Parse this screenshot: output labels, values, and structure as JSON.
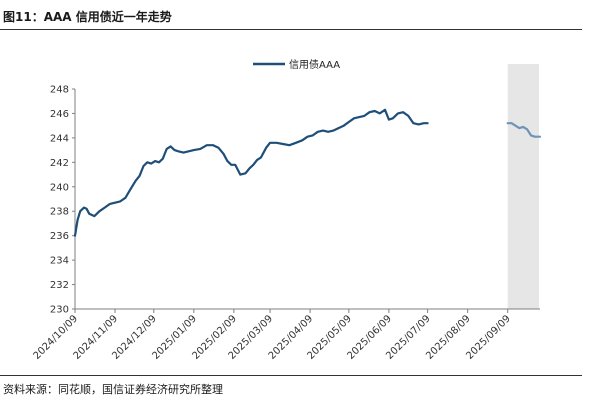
{
  "figure": {
    "title": "图11：AAA 信用债近一年走势",
    "source": "资料来源：同花顺，国信证券经济研究所整理"
  },
  "colors": {
    "line": "#1f4e79",
    "forecast_line": "#6f93b5",
    "shade": "#e6e6e6",
    "axis": "#7f7f7f"
  },
  "chart_data": {
    "type": "line",
    "title": "",
    "xlabel": "",
    "ylabel": "",
    "ylim": [
      230,
      248
    ],
    "yticks": [
      230,
      232,
      234,
      236,
      238,
      240,
      242,
      244,
      246,
      248
    ],
    "xlim": [
      "2024-10-09",
      "2025-10-04"
    ],
    "xticks": [
      "2024/10/09",
      "2024/11/09",
      "2024/12/09",
      "2025/01/09",
      "2025/02/09",
      "2025/03/09",
      "2025/04/09",
      "2025/05/09",
      "2025/06/09",
      "2025/07/09",
      "2025/08/09",
      "2025/09/09"
    ],
    "grid": false,
    "legend": {
      "position": "top-center"
    },
    "shaded_region": {
      "from": "2025-09-09",
      "to": "2025-10-04"
    },
    "series": [
      {
        "name": "信用债AAA",
        "points": [
          [
            "2024-10-09",
            236.0
          ],
          [
            "2024-10-11",
            237.3
          ],
          [
            "2024-10-13",
            238.0
          ],
          [
            "2024-10-16",
            238.3
          ],
          [
            "2024-10-18",
            238.2
          ],
          [
            "2024-10-20",
            237.8
          ],
          [
            "2024-10-24",
            237.6
          ],
          [
            "2024-10-28",
            238.0
          ],
          [
            "2024-11-01",
            238.3
          ],
          [
            "2024-11-05",
            238.6
          ],
          [
            "2024-11-09",
            238.7
          ],
          [
            "2024-11-13",
            238.8
          ],
          [
            "2024-11-17",
            239.1
          ],
          [
            "2024-11-21",
            239.8
          ],
          [
            "2024-11-25",
            240.5
          ],
          [
            "2024-11-28",
            240.9
          ],
          [
            "2024-12-01",
            241.7
          ],
          [
            "2024-12-04",
            242.0
          ],
          [
            "2024-12-07",
            241.9
          ],
          [
            "2024-12-10",
            242.1
          ],
          [
            "2024-12-13",
            242.0
          ],
          [
            "2024-12-16",
            242.3
          ],
          [
            "2024-12-19",
            243.1
          ],
          [
            "2024-12-22",
            243.3
          ],
          [
            "2024-12-25",
            243.0
          ],
          [
            "2024-12-28",
            242.9
          ],
          [
            "2025-01-01",
            242.8
          ],
          [
            "2025-01-05",
            242.9
          ],
          [
            "2025-01-09",
            243.0
          ],
          [
            "2025-01-14",
            243.1
          ],
          [
            "2025-01-19",
            243.4
          ],
          [
            "2025-01-24",
            243.4
          ],
          [
            "2025-01-28",
            243.2
          ],
          [
            "2025-02-01",
            242.7
          ],
          [
            "2025-02-04",
            242.1
          ],
          [
            "2025-02-07",
            241.8
          ],
          [
            "2025-02-10",
            241.8
          ],
          [
            "2025-02-14",
            241.0
          ],
          [
            "2025-02-18",
            241.1
          ],
          [
            "2025-02-21",
            241.5
          ],
          [
            "2025-02-24",
            241.8
          ],
          [
            "2025-02-27",
            242.2
          ],
          [
            "2025-03-02",
            242.4
          ],
          [
            "2025-03-06",
            243.2
          ],
          [
            "2025-03-09",
            243.6
          ],
          [
            "2025-03-14",
            243.6
          ],
          [
            "2025-03-19",
            243.5
          ],
          [
            "2025-03-24",
            243.4
          ],
          [
            "2025-03-29",
            243.6
          ],
          [
            "2025-04-03",
            243.8
          ],
          [
            "2025-04-07",
            244.1
          ],
          [
            "2025-04-11",
            244.2
          ],
          [
            "2025-04-15",
            244.5
          ],
          [
            "2025-04-19",
            244.6
          ],
          [
            "2025-04-23",
            244.5
          ],
          [
            "2025-04-27",
            244.6
          ],
          [
            "2025-05-01",
            244.8
          ],
          [
            "2025-05-05",
            245.0
          ],
          [
            "2025-05-09",
            245.3
          ],
          [
            "2025-05-13",
            245.6
          ],
          [
            "2025-05-17",
            245.7
          ],
          [
            "2025-05-21",
            245.8
          ],
          [
            "2025-05-25",
            246.1
          ],
          [
            "2025-05-29",
            246.2
          ],
          [
            "2025-06-02",
            246.0
          ],
          [
            "2025-06-06",
            246.3
          ],
          [
            "2025-06-09",
            245.5
          ],
          [
            "2025-06-12",
            245.6
          ],
          [
            "2025-06-16",
            246.0
          ],
          [
            "2025-06-20",
            246.1
          ],
          [
            "2025-06-24",
            245.8
          ],
          [
            "2025-06-28",
            245.2
          ],
          [
            "2025-07-02",
            245.1
          ],
          [
            "2025-07-06",
            245.2
          ],
          [
            "2025-07-09",
            245.2
          ]
        ]
      },
      {
        "name": "",
        "points": [
          [
            "2025-09-09",
            245.2
          ],
          [
            "2025-09-12",
            245.2
          ],
          [
            "2025-09-15",
            245.0
          ],
          [
            "2025-09-18",
            244.8
          ],
          [
            "2025-09-21",
            244.9
          ],
          [
            "2025-09-24",
            244.7
          ],
          [
            "2025-09-27",
            244.2
          ],
          [
            "2025-09-30",
            244.1
          ],
          [
            "2025-10-04",
            244.1
          ]
        ]
      }
    ]
  }
}
